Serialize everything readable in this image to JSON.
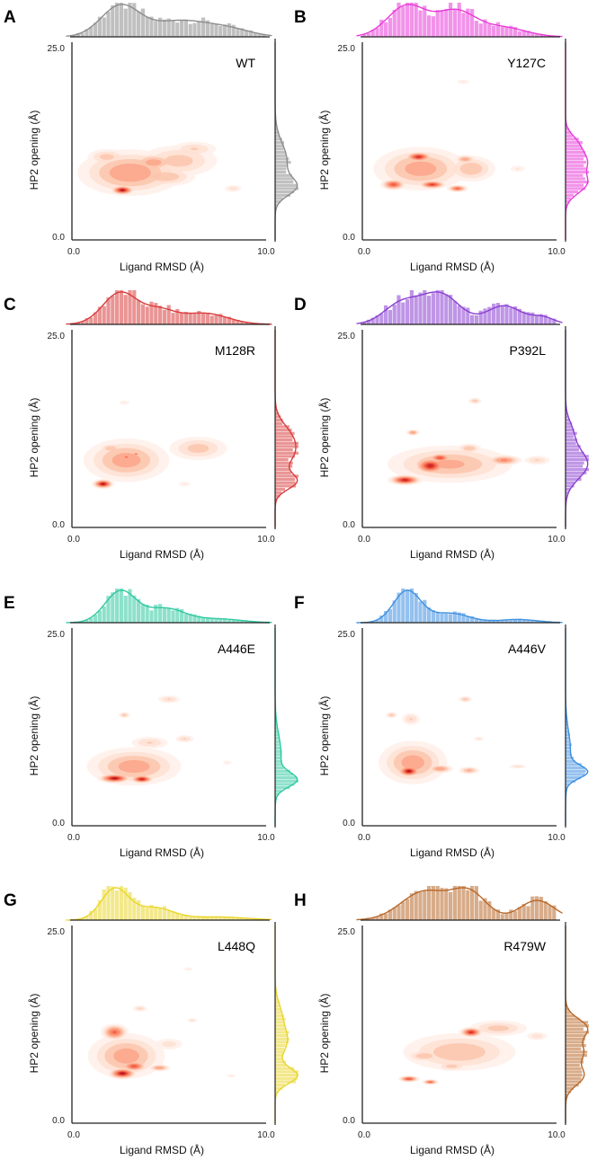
{
  "figure": {
    "x_axis_title": "Ligand RMSD (Å)",
    "y_axis_title": "HP2 opening (Å)"
  },
  "chart_data": [
    {
      "panel": "A",
      "variant": "WT",
      "type": "kde-2d-with-marginal-histograms",
      "color": "#8c8c8c",
      "xlim": [
        0.0,
        10.0
      ],
      "ylim": [
        0.0,
        25.0
      ],
      "x_ticks": [
        "0.0",
        "10.0"
      ],
      "y_ticks": [
        "0.0",
        "25.0"
      ],
      "xlabel": "Ligand RMSD (Å)",
      "ylabel": "HP2 opening (Å)",
      "density_regions": [
        {
          "x": 3.0,
          "y": 8.5,
          "sx": 2.4,
          "sy": 2.6,
          "w": 0.5
        },
        {
          "x": 5.5,
          "y": 10.0,
          "sx": 2.0,
          "sy": 2.0,
          "w": 0.3
        },
        {
          "x": 2.6,
          "y": 6.3,
          "sx": 0.5,
          "sy": 0.5,
          "w": 1.0
        },
        {
          "x": 4.2,
          "y": 9.8,
          "sx": 1.1,
          "sy": 1.1,
          "w": 0.45
        },
        {
          "x": 4.8,
          "y": 8.0,
          "sx": 1.5,
          "sy": 1.2,
          "w": 0.35
        },
        {
          "x": 6.3,
          "y": 11.5,
          "sx": 1.2,
          "sy": 1.0,
          "w": 0.25
        },
        {
          "x": 1.8,
          "y": 10.5,
          "sx": 1.0,
          "sy": 1.0,
          "w": 0.3
        },
        {
          "x": 8.3,
          "y": 6.5,
          "sx": 0.5,
          "sy": 0.5,
          "w": 0.2
        }
      ],
      "x_marginal_peaks": [
        {
          "mu": 2.5,
          "sd": 1.0,
          "w": 1.0
        },
        {
          "mu": 5.5,
          "sd": 1.4,
          "w": 0.5
        },
        {
          "mu": 8.0,
          "sd": 1.2,
          "w": 0.25
        }
      ],
      "y_marginal_peaks": [
        {
          "mu": 6.7,
          "sd": 1.1,
          "w": 1.0
        },
        {
          "mu": 10.0,
          "sd": 2.2,
          "w": 0.65
        }
      ]
    },
    {
      "panel": "B",
      "variant": "Y127C",
      "type": "kde-2d-with-marginal-histograms",
      "color": "#e83ad9",
      "xlim": [
        0.0,
        10.0
      ],
      "ylim": [
        0.0,
        25.0
      ],
      "x_ticks": [
        "0.0",
        "10.0"
      ],
      "y_ticks": [
        "0.0",
        "25.0"
      ],
      "xlabel": "Ligand RMSD (Å)",
      "ylabel": "HP2 opening (Å)",
      "density_regions": [
        {
          "x": 3.0,
          "y": 9.0,
          "sx": 2.2,
          "sy": 2.5,
          "w": 0.45
        },
        {
          "x": 2.9,
          "y": 10.5,
          "sx": 0.6,
          "sy": 0.55,
          "w": 0.9
        },
        {
          "x": 1.6,
          "y": 7.0,
          "sx": 0.55,
          "sy": 0.6,
          "w": 0.75
        },
        {
          "x": 3.6,
          "y": 7.0,
          "sx": 0.6,
          "sy": 0.45,
          "w": 0.85
        },
        {
          "x": 4.9,
          "y": 6.5,
          "sx": 0.45,
          "sy": 0.4,
          "w": 0.7
        },
        {
          "x": 5.6,
          "y": 9.0,
          "sx": 1.2,
          "sy": 1.6,
          "w": 0.35
        },
        {
          "x": 5.3,
          "y": 10.2,
          "sx": 0.5,
          "sy": 0.5,
          "w": 0.45
        },
        {
          "x": 5.2,
          "y": 20.0,
          "sx": 0.45,
          "sy": 0.35,
          "w": 0.15
        },
        {
          "x": 8.0,
          "y": 9.0,
          "sx": 0.5,
          "sy": 0.5,
          "w": 0.15
        }
      ],
      "x_marginal_peaks": [
        {
          "mu": 2.3,
          "sd": 1.0,
          "w": 1.0
        },
        {
          "mu": 4.8,
          "sd": 1.0,
          "w": 0.8
        },
        {
          "mu": 7.2,
          "sd": 1.2,
          "w": 0.3
        }
      ],
      "y_marginal_peaks": [
        {
          "mu": 7.0,
          "sd": 1.2,
          "w": 0.8
        },
        {
          "mu": 10.0,
          "sd": 1.5,
          "w": 0.9
        },
        {
          "mu": 12.5,
          "sd": 1.0,
          "w": 0.3
        }
      ]
    },
    {
      "panel": "C",
      "variant": "M128R",
      "type": "kde-2d-with-marginal-histograms",
      "color": "#d93c3c",
      "xlim": [
        0.0,
        10.0
      ],
      "ylim": [
        0.0,
        25.0
      ],
      "x_ticks": [
        "0.0",
        "10.0"
      ],
      "y_ticks": [
        "0.0",
        "25.0"
      ],
      "xlabel": "Ligand RMSD (Å)",
      "ylabel": "HP2 opening (Å)",
      "density_regions": [
        {
          "x": 2.8,
          "y": 8.5,
          "sx": 2.0,
          "sy": 2.5,
          "w": 0.45
        },
        {
          "x": 1.6,
          "y": 5.5,
          "sx": 0.45,
          "sy": 0.5,
          "w": 1.0
        },
        {
          "x": 2.8,
          "y": 8.9,
          "sx": 0.15,
          "sy": 0.2,
          "w": 0.8
        },
        {
          "x": 3.3,
          "y": 9.3,
          "sx": 0.15,
          "sy": 0.2,
          "w": 0.7
        },
        {
          "x": 2.0,
          "y": 10.0,
          "sx": 0.6,
          "sy": 0.6,
          "w": 0.35
        },
        {
          "x": 6.5,
          "y": 10.0,
          "sx": 1.5,
          "sy": 1.5,
          "w": 0.3
        },
        {
          "x": 2.7,
          "y": 15.8,
          "sx": 0.35,
          "sy": 0.35,
          "w": 0.15
        },
        {
          "x": 5.8,
          "y": 5.5,
          "sx": 0.4,
          "sy": 0.4,
          "w": 0.15
        }
      ],
      "x_marginal_peaks": [
        {
          "mu": 2.5,
          "sd": 0.9,
          "w": 1.0
        },
        {
          "mu": 6.8,
          "sd": 1.2,
          "w": 0.35
        },
        {
          "mu": 4.5,
          "sd": 0.8,
          "w": 0.4
        }
      ],
      "y_marginal_peaks": [
        {
          "mu": 5.8,
          "sd": 1.0,
          "w": 0.9
        },
        {
          "mu": 9.5,
          "sd": 1.8,
          "w": 0.8
        },
        {
          "mu": 12.0,
          "sd": 1.5,
          "w": 0.4
        }
      ]
    },
    {
      "panel": "D",
      "variant": "P392L",
      "type": "kde-2d-with-marginal-histograms",
      "color": "#8a3fd1",
      "xlim": [
        0.0,
        10.0
      ],
      "ylim": [
        0.0,
        25.0
      ],
      "x_ticks": [
        "0.0",
        "10.0"
      ],
      "y_ticks": [
        "0.0",
        "25.0"
      ],
      "xlabel": "Ligand RMSD (Å)",
      "ylabel": "HP2 opening (Å)",
      "density_regions": [
        {
          "x": 4.5,
          "y": 8.0,
          "sx": 3.0,
          "sy": 2.2,
          "w": 0.4
        },
        {
          "x": 2.2,
          "y": 6.0,
          "sx": 0.7,
          "sy": 0.55,
          "w": 0.95
        },
        {
          "x": 3.5,
          "y": 7.8,
          "sx": 0.7,
          "sy": 0.9,
          "w": 0.95
        },
        {
          "x": 4.0,
          "y": 8.8,
          "sx": 0.5,
          "sy": 0.5,
          "w": 0.8
        },
        {
          "x": 7.3,
          "y": 8.5,
          "sx": 0.8,
          "sy": 0.6,
          "w": 0.55
        },
        {
          "x": 5.5,
          "y": 10.0,
          "sx": 0.6,
          "sy": 0.6,
          "w": 0.35
        },
        {
          "x": 5.8,
          "y": 16.0,
          "sx": 0.35,
          "sy": 0.4,
          "w": 0.3
        },
        {
          "x": 2.6,
          "y": 12.0,
          "sx": 0.3,
          "sy": 0.35,
          "w": 0.5
        },
        {
          "x": 9.0,
          "y": 8.5,
          "sx": 0.7,
          "sy": 0.6,
          "w": 0.25
        }
      ],
      "x_marginal_peaks": [
        {
          "mu": 2.0,
          "sd": 0.9,
          "w": 0.6
        },
        {
          "mu": 4.0,
          "sd": 1.0,
          "w": 0.9
        },
        {
          "mu": 7.3,
          "sd": 0.9,
          "w": 0.55
        },
        {
          "mu": 9.3,
          "sd": 0.6,
          "w": 0.2
        }
      ],
      "y_marginal_peaks": [
        {
          "mu": 8.0,
          "sd": 1.8,
          "w": 1.0
        },
        {
          "mu": 12.0,
          "sd": 1.5,
          "w": 0.3
        }
      ]
    },
    {
      "panel": "E",
      "variant": "A446E",
      "type": "kde-2d-with-marginal-histograms",
      "color": "#2fc9a0",
      "xlim": [
        0.0,
        10.0
      ],
      "ylim": [
        0.0,
        25.0
      ],
      "x_ticks": [
        "0.0",
        "10.0"
      ],
      "y_ticks": [
        "0.0",
        "25.0"
      ],
      "xlabel": "Ligand RMSD (Å)",
      "ylabel": "HP2 opening (Å)",
      "density_regions": [
        {
          "x": 3.2,
          "y": 7.5,
          "sx": 2.2,
          "sy": 2.2,
          "w": 0.45
        },
        {
          "x": 2.2,
          "y": 6.0,
          "sx": 0.7,
          "sy": 0.5,
          "w": 1.0
        },
        {
          "x": 3.6,
          "y": 5.9,
          "sx": 0.5,
          "sy": 0.45,
          "w": 0.95
        },
        {
          "x": 2.7,
          "y": 14.0,
          "sx": 0.3,
          "sy": 0.4,
          "w": 0.3
        },
        {
          "x": 5.0,
          "y": 16.0,
          "sx": 0.6,
          "sy": 0.5,
          "w": 0.25
        },
        {
          "x": 5.8,
          "y": 11.0,
          "sx": 0.5,
          "sy": 0.5,
          "w": 0.25
        },
        {
          "x": 4.0,
          "y": 10.5,
          "sx": 1.0,
          "sy": 0.8,
          "w": 0.25
        },
        {
          "x": 8.0,
          "y": 8.0,
          "sx": 0.3,
          "sy": 0.3,
          "w": 0.15
        }
      ],
      "x_marginal_peaks": [
        {
          "mu": 2.5,
          "sd": 0.8,
          "w": 1.0
        },
        {
          "mu": 4.8,
          "sd": 1.0,
          "w": 0.45
        },
        {
          "mu": 7.5,
          "sd": 1.2,
          "w": 0.12
        }
      ],
      "y_marginal_peaks": [
        {
          "mu": 5.8,
          "sd": 0.9,
          "w": 1.0
        },
        {
          "mu": 9.0,
          "sd": 2.5,
          "w": 0.3
        }
      ]
    },
    {
      "panel": "F",
      "variant": "A446V",
      "type": "kde-2d-with-marginal-histograms",
      "color": "#3d8fe0",
      "xlim": [
        0.0,
        10.0
      ],
      "ylim": [
        0.0,
        25.0
      ],
      "x_ticks": [
        "0.0",
        "10.0"
      ],
      "y_ticks": [
        "0.0",
        "25.0"
      ],
      "xlabel": "Ligand RMSD (Å)",
      "ylabel": "HP2 opening (Å)",
      "density_regions": [
        {
          "x": 2.6,
          "y": 8.0,
          "sx": 1.6,
          "sy": 2.5,
          "w": 0.45
        },
        {
          "x": 2.4,
          "y": 6.9,
          "sx": 0.5,
          "sy": 0.6,
          "w": 1.0
        },
        {
          "x": 4.0,
          "y": 7.2,
          "sx": 0.6,
          "sy": 0.5,
          "w": 0.5
        },
        {
          "x": 5.5,
          "y": 7.0,
          "sx": 0.5,
          "sy": 0.45,
          "w": 0.4
        },
        {
          "x": 1.5,
          "y": 14.0,
          "sx": 0.3,
          "sy": 0.4,
          "w": 0.3
        },
        {
          "x": 2.5,
          "y": 13.5,
          "sx": 0.5,
          "sy": 0.8,
          "w": 0.25
        },
        {
          "x": 5.3,
          "y": 16.0,
          "sx": 0.35,
          "sy": 0.4,
          "w": 0.3
        },
        {
          "x": 6.0,
          "y": 11.0,
          "sx": 0.3,
          "sy": 0.3,
          "w": 0.2
        },
        {
          "x": 8.0,
          "y": 7.5,
          "sx": 0.5,
          "sy": 0.3,
          "w": 0.2
        }
      ],
      "x_marginal_peaks": [
        {
          "mu": 2.3,
          "sd": 0.7,
          "w": 1.0
        },
        {
          "mu": 4.5,
          "sd": 1.0,
          "w": 0.3
        },
        {
          "mu": 8.0,
          "sd": 1.0,
          "w": 0.1
        }
      ],
      "y_marginal_peaks": [
        {
          "mu": 6.8,
          "sd": 0.8,
          "w": 1.0
        },
        {
          "mu": 9.5,
          "sd": 2.5,
          "w": 0.25
        }
      ]
    },
    {
      "panel": "G",
      "variant": "L448Q",
      "type": "kde-2d-with-marginal-histograms",
      "color": "#ead52a",
      "xlim": [
        0.0,
        10.0
      ],
      "ylim": [
        0.0,
        25.0
      ],
      "x_ticks": [
        "0.0",
        "10.0"
      ],
      "y_ticks": [
        "0.0",
        "25.0"
      ],
      "xlabel": "Ligand RMSD (Å)",
      "ylabel": "HP2 opening (Å)",
      "density_regions": [
        {
          "x": 2.8,
          "y": 8.5,
          "sx": 1.8,
          "sy": 2.6,
          "w": 0.45
        },
        {
          "x": 2.2,
          "y": 11.5,
          "sx": 0.6,
          "sy": 0.9,
          "w": 0.7
        },
        {
          "x": 2.6,
          "y": 6.3,
          "sx": 0.6,
          "sy": 0.6,
          "w": 1.0
        },
        {
          "x": 3.2,
          "y": 7.2,
          "sx": 0.6,
          "sy": 0.6,
          "w": 0.75
        },
        {
          "x": 4.5,
          "y": 7.0,
          "sx": 0.5,
          "sy": 0.4,
          "w": 0.5
        },
        {
          "x": 3.5,
          "y": 14.5,
          "sx": 0.4,
          "sy": 0.4,
          "w": 0.25
        },
        {
          "x": 6.2,
          "y": 13.0,
          "sx": 0.3,
          "sy": 0.3,
          "w": 0.2
        },
        {
          "x": 6.0,
          "y": 19.5,
          "sx": 0.3,
          "sy": 0.3,
          "w": 0.15
        },
        {
          "x": 5.0,
          "y": 10.0,
          "sx": 0.8,
          "sy": 0.8,
          "w": 0.2
        },
        {
          "x": 8.2,
          "y": 6.0,
          "sx": 0.3,
          "sy": 0.3,
          "w": 0.15
        }
      ],
      "x_marginal_peaks": [
        {
          "mu": 2.2,
          "sd": 0.7,
          "w": 1.0
        },
        {
          "mu": 4.2,
          "sd": 1.0,
          "w": 0.4
        },
        {
          "mu": 7.5,
          "sd": 1.5,
          "w": 0.1
        }
      ],
      "y_marginal_peaks": [
        {
          "mu": 6.0,
          "sd": 1.0,
          "w": 0.9
        },
        {
          "mu": 10.5,
          "sd": 1.8,
          "w": 0.5
        },
        {
          "mu": 14.0,
          "sd": 1.5,
          "w": 0.2
        }
      ]
    },
    {
      "panel": "H",
      "variant": "R479W",
      "type": "kde-2d-with-marginal-histograms",
      "color": "#b8682a",
      "xlim": [
        0.0,
        10.0
      ],
      "ylim": [
        0.0,
        25.0
      ],
      "x_ticks": [
        "0.0",
        "10.0"
      ],
      "y_ticks": [
        "0.0",
        "25.0"
      ],
      "xlabel": "Ligand RMSD (Å)",
      "ylabel": "HP2 opening (Å)",
      "density_regions": [
        {
          "x": 5.0,
          "y": 9.0,
          "sx": 2.8,
          "sy": 2.3,
          "w": 0.35
        },
        {
          "x": 5.6,
          "y": 11.5,
          "sx": 0.5,
          "sy": 0.55,
          "w": 0.9
        },
        {
          "x": 2.4,
          "y": 5.6,
          "sx": 0.45,
          "sy": 0.35,
          "w": 0.8
        },
        {
          "x": 3.5,
          "y": 5.2,
          "sx": 0.35,
          "sy": 0.3,
          "w": 0.7
        },
        {
          "x": 3.2,
          "y": 8.5,
          "sx": 0.9,
          "sy": 0.7,
          "w": 0.35
        },
        {
          "x": 4.6,
          "y": 7.2,
          "sx": 0.8,
          "sy": 0.6,
          "w": 0.3
        },
        {
          "x": 7.0,
          "y": 12.0,
          "sx": 1.5,
          "sy": 1.0,
          "w": 0.3
        },
        {
          "x": 9.0,
          "y": 11.0,
          "sx": 0.6,
          "sy": 0.6,
          "w": 0.2
        }
      ],
      "x_marginal_peaks": [
        {
          "mu": 3.2,
          "sd": 1.2,
          "w": 0.8
        },
        {
          "mu": 5.5,
          "sd": 0.9,
          "w": 0.75
        },
        {
          "mu": 9.0,
          "sd": 0.9,
          "w": 0.55
        }
      ],
      "y_marginal_peaks": [
        {
          "mu": 6.0,
          "sd": 1.2,
          "w": 0.75
        },
        {
          "mu": 9.0,
          "sd": 1.2,
          "w": 0.7
        },
        {
          "mu": 12.0,
          "sd": 1.2,
          "w": 0.9
        }
      ]
    }
  ]
}
